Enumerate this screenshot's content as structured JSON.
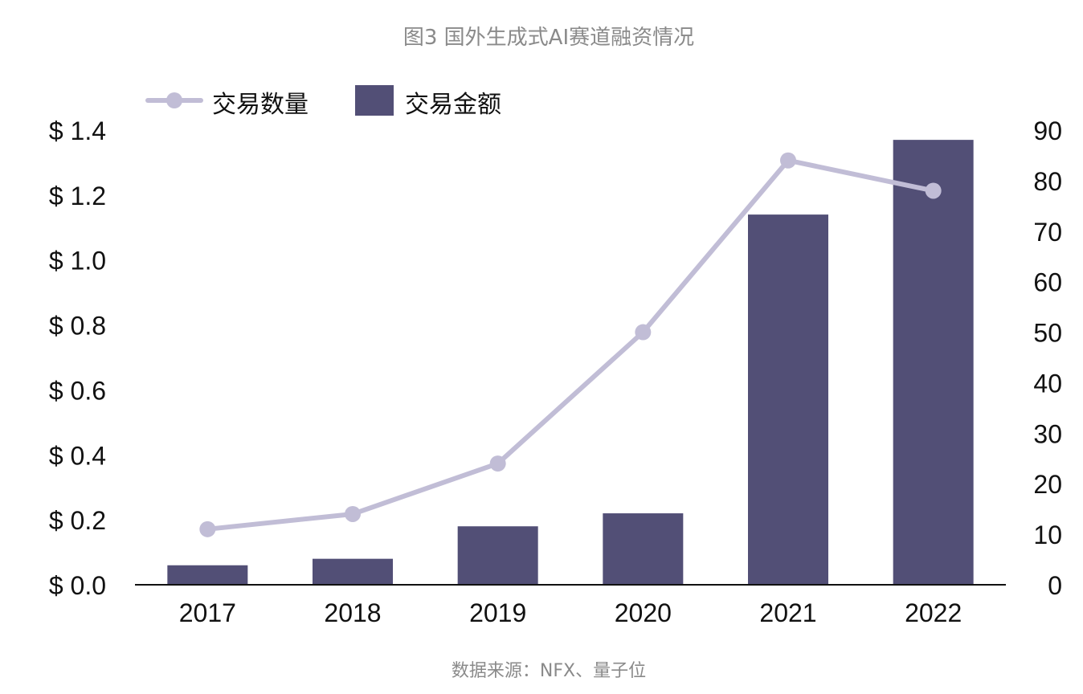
{
  "chart_data": {
    "type": "bar",
    "title": "图3 国外生成式AI赛道融资情况",
    "source": "数据来源：NFX、量子位",
    "categories": [
      "2017",
      "2018",
      "2019",
      "2020",
      "2021",
      "2022"
    ],
    "series": [
      {
        "name": "交易金额",
        "type": "bar",
        "axis": "left",
        "values": [
          0.06,
          0.08,
          0.18,
          0.22,
          1.14,
          1.37
        ]
      },
      {
        "name": "交易数量",
        "type": "line",
        "axis": "right",
        "values": [
          11,
          14,
          24,
          50,
          84,
          78
        ]
      }
    ],
    "y_left": {
      "ylim": [
        0,
        1.4
      ],
      "ticks": [
        0,
        0.2,
        0.4,
        0.6,
        0.8,
        1.0,
        1.2,
        1.4
      ],
      "tick_labels": [
        "$ 0.0",
        "$ 0.2",
        "$ 0.4",
        "$ 0.6",
        "$ 0.8",
        "$ 1.0",
        "$ 1.2",
        "$ 1.4"
      ]
    },
    "y_right": {
      "ylim": [
        0,
        90
      ],
      "ticks": [
        0,
        10,
        20,
        30,
        40,
        50,
        60,
        70,
        80,
        90
      ],
      "tick_labels": [
        "0",
        "10",
        "20",
        "30",
        "40",
        "50",
        "60",
        "70",
        "80",
        "90"
      ]
    },
    "legend": {
      "placement": "top-left",
      "entries": [
        "交易数量",
        "交易金额"
      ]
    },
    "grid": false,
    "colors": {
      "bar": "#524f76",
      "line": "#c1bdd6"
    }
  }
}
